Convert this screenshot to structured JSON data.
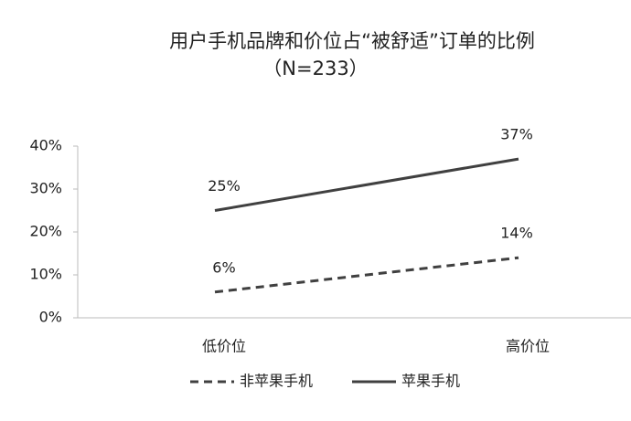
{
  "chart_data": {
    "type": "line",
    "title": "用户手机品牌和价位占“被舒适”订单的比例",
    "subtitle": "（N=233）",
    "categories": [
      "低价位",
      "高价位"
    ],
    "series": [
      {
        "name": "非苹果手机",
        "color": "#404040",
        "line_style": "dashed",
        "values": [
          6,
          14
        ],
        "value_labels": [
          "6%",
          "14%"
        ]
      },
      {
        "name": "苹果手机",
        "color": "#404040",
        "line_style": "solid",
        "values": [
          25,
          37
        ],
        "value_labels": [
          "25%",
          "37%"
        ]
      }
    ],
    "ylim": [
      0,
      40
    ],
    "yticks": [
      {
        "value": 0,
        "label": "0%"
      },
      {
        "value": 10,
        "label": "10%"
      },
      {
        "value": 20,
        "label": "20%"
      },
      {
        "value": 30,
        "label": "30%"
      },
      {
        "value": 40,
        "label": "40%"
      }
    ],
    "legend": "bottom"
  }
}
